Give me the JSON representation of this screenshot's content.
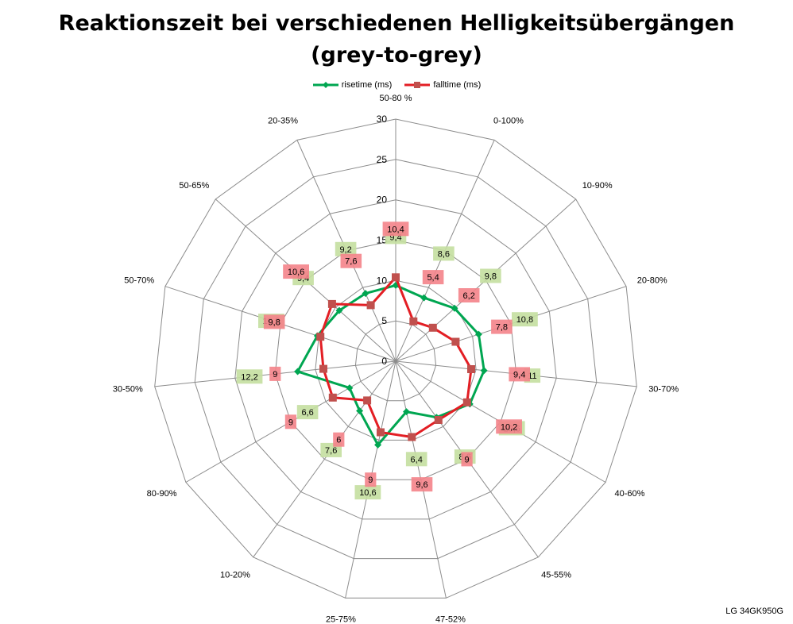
{
  "chart_data": {
    "type": "radar",
    "title_lines": [
      "Reaktionszeit bei verschiedenen Helligkeitsübergängen",
      "(grey-to-grey)"
    ],
    "categories": [
      "50-80 %",
      "0-100%",
      "10-90%",
      "20-80%",
      "30-70%",
      "40-60%",
      "45-55%",
      "47-52%",
      "25-75%",
      "10-20%",
      "80-90%",
      "30-50%",
      "50-70%",
      "50-65%",
      "20-35%"
    ],
    "radial_ticks": [
      "0",
      "5",
      "10",
      "15",
      "20",
      "25",
      "30"
    ],
    "rlim": [
      0,
      30
    ],
    "rings": 6,
    "grid": true,
    "legend_position": "top",
    "series": [
      {
        "name": "risetime (ms)",
        "color": "#00a651",
        "marker": "diamond",
        "values": [
          9.4,
          8.6,
          9.8,
          10.8,
          11,
          10.6,
          8.6,
          6.4,
          10.6,
          7.6,
          6.6,
          12.2,
          10.2,
          9.4,
          9.2
        ],
        "labels": [
          "9,4",
          "8,6",
          "9,8",
          "10,8",
          "11",
          "10,6",
          "8,6",
          "6,4",
          "10,6",
          "7,6",
          "6,6",
          "12,2",
          "10,2",
          "9,4",
          "9,2"
        ]
      },
      {
        "name": "falltime (ms)",
        "color": "#e31e24",
        "marker": "square",
        "values": [
          10.4,
          5.4,
          6.2,
          7.8,
          9.4,
          10.2,
          9,
          9.6,
          9,
          6,
          9,
          9,
          9.8,
          10.6,
          7.6
        ],
        "labels": [
          "10,4",
          "5,4",
          "6,2",
          "7,8",
          "9,4",
          "10,2",
          "9",
          "9,6",
          "9",
          "6",
          "9",
          "9",
          "9,8",
          "10,6",
          "7,6"
        ]
      }
    ]
  },
  "footer": {
    "model": "LG 34GK950G"
  }
}
